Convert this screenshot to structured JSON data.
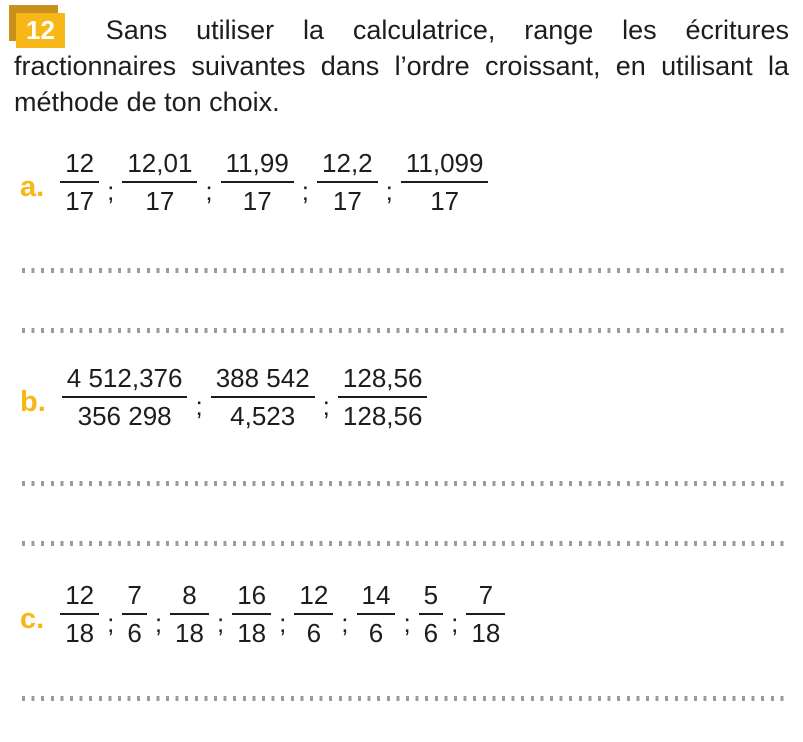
{
  "colors": {
    "accent": "#f7b717",
    "accent_shadow": "#c9901c",
    "text": "#1d1d1d",
    "dots": "#9b9b9b",
    "badge_number_text": "#ffffff"
  },
  "separator": ";",
  "header": {
    "number": "12",
    "instruction": "Sans utiliser la calculatrice, range les écritures fractionnaires suivantes dans l’ordre croissant, en utilisant la méthode de ton choix."
  },
  "sections": [
    {
      "label": "a.",
      "fractions": [
        {
          "num": "12",
          "den": "17"
        },
        {
          "num": "12,01",
          "den": "17"
        },
        {
          "num": "11,99",
          "den": "17"
        },
        {
          "num": "12,2",
          "den": "17"
        },
        {
          "num": "11,099",
          "den": "17"
        }
      ]
    },
    {
      "label": "b.",
      "fractions": [
        {
          "num": "4 512,376",
          "den": "356 298"
        },
        {
          "num": "388 542",
          "den": "4,523"
        },
        {
          "num": "128,56",
          "den": "128,56"
        }
      ]
    },
    {
      "label": "c.",
      "fractions": [
        {
          "num": "12",
          "den": "18"
        },
        {
          "num": "7",
          "den": "6"
        },
        {
          "num": "8",
          "den": "18"
        },
        {
          "num": "16",
          "den": "18"
        },
        {
          "num": "12",
          "den": "6"
        },
        {
          "num": "14",
          "den": "6"
        },
        {
          "num": "5",
          "den": "6"
        },
        {
          "num": "7",
          "den": "18"
        }
      ]
    }
  ]
}
